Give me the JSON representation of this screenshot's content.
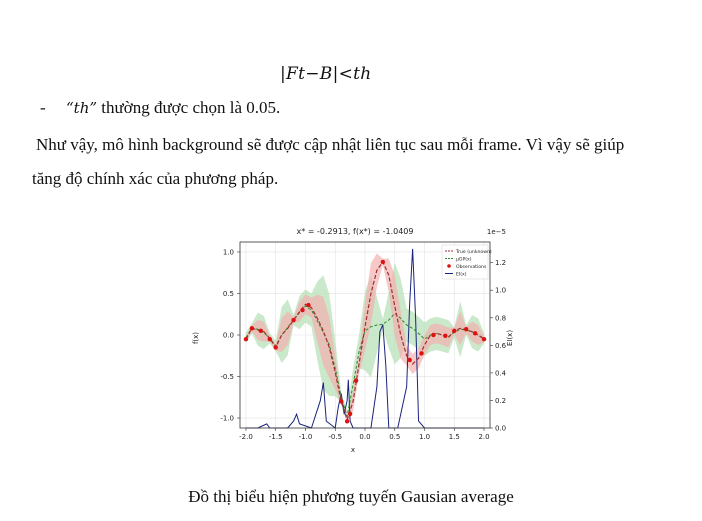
{
  "document": {
    "formula": "|Ft−B|<th",
    "bullet_dash": "-",
    "bullet_var": "“th”",
    "bullet_rest": " thường được chọn là 0.05.",
    "paragraph_line1": "Như vậy, mô hình background sẽ được cập nhật liên tục sau mỗi frame. Vì vậy sẽ giúp",
    "paragraph_line2": "tăng độ chính xác của phương pháp.",
    "caption": "Đồ thị biểu hiện phương tuyến Gausian average"
  },
  "chart_data": {
    "type": "line",
    "title": "x* = -0.2913, f(x*) = -1.0409",
    "xlabel": "x",
    "ylabel": "f(x)",
    "y2label": "EI(x)",
    "y2_scale_label": "1e−5",
    "xlim": [
      -2.1,
      2.1
    ],
    "ylim": [
      -1.12,
      1.12
    ],
    "y2lim": [
      0,
      1.35
    ],
    "xticks": [
      "-2.0",
      "-1.5",
      "-1.0",
      "-0.5",
      "0.0",
      "0.5",
      "1.0",
      "1.5",
      "2.0"
    ],
    "yticks": [
      "1.0",
      "0.5",
      "0.0",
      "-0.5",
      "-1.0"
    ],
    "y2ticks": [
      "1.2",
      "1.0",
      "0.8",
      "0.6",
      "0.4",
      "0.2",
      "0.0"
    ],
    "legend": [
      "True (unknown)",
      "μGP(x)",
      "Observations",
      "EI(x)"
    ],
    "legend_position": "top-right",
    "grid": true,
    "colors": {
      "true": "#a03030",
      "mu": "#2a8a2a",
      "obs": "#dd1111",
      "ei": "#1a237e",
      "band_red": "#f4b0b0",
      "band_green": "#b8e0b8"
    },
    "series": [
      {
        "name": "True (unknown)",
        "x": [
          -2.0,
          -1.9,
          -1.8,
          -1.7,
          -1.6,
          -1.5,
          -1.4,
          -1.3,
          -1.2,
          -1.1,
          -1.0,
          -0.9,
          -0.8,
          -0.7,
          -0.6,
          -0.5,
          -0.4,
          -0.3,
          -0.2,
          -0.1,
          0.0,
          0.1,
          0.2,
          0.3,
          0.4,
          0.5,
          0.6,
          0.7,
          0.8,
          0.9,
          1.0,
          1.1,
          1.2,
          1.3,
          1.4,
          1.5,
          1.6,
          1.7,
          1.8,
          1.9,
          2.0
        ],
        "y": [
          -0.05,
          0.08,
          0.06,
          0.04,
          -0.04,
          -0.15,
          0.0,
          0.08,
          0.18,
          0.28,
          0.37,
          0.33,
          0.2,
          0.05,
          -0.15,
          -0.45,
          -0.8,
          -1.02,
          -0.8,
          -0.35,
          0.1,
          0.5,
          0.78,
          0.88,
          0.72,
          0.35,
          0.0,
          -0.25,
          -0.35,
          -0.28,
          -0.12,
          0.0,
          0.02,
          0.0,
          -0.03,
          0.05,
          0.08,
          0.06,
          0.04,
          0.0,
          -0.05
        ]
      },
      {
        "name": "μGP(x)",
        "x": [
          -2.0,
          -1.9,
          -1.8,
          -1.7,
          -1.6,
          -1.5,
          -1.4,
          -1.3,
          -1.2,
          -1.1,
          -1.0,
          -0.9,
          -0.8,
          -0.7,
          -0.6,
          -0.5,
          -0.4,
          -0.3,
          -0.2,
          -0.1,
          0.0,
          0.1,
          0.2,
          0.3,
          0.4,
          0.5,
          0.6,
          0.7,
          0.8,
          0.9,
          1.0,
          1.1,
          1.2,
          1.3,
          1.4,
          1.5,
          1.6,
          1.7,
          1.8,
          1.9,
          2.0
        ],
        "y": [
          -0.03,
          0.08,
          0.07,
          0.03,
          -0.04,
          -0.13,
          0.0,
          0.09,
          0.18,
          0.27,
          0.35,
          0.3,
          0.17,
          0.03,
          -0.12,
          -0.4,
          -0.75,
          -0.98,
          -0.6,
          -0.2,
          0.05,
          0.1,
          0.12,
          0.13,
          0.18,
          0.26,
          0.2,
          0.12,
          0.08,
          0.02,
          -0.05,
          0.0,
          0.02,
          0.0,
          -0.02,
          0.03,
          0.07,
          0.06,
          0.04,
          0.0,
          -0.04
        ]
      },
      {
        "name": "Observations",
        "x": [
          -2.0,
          -1.9,
          -1.75,
          -1.6,
          -1.5,
          -1.2,
          -1.05,
          -0.95,
          -0.4,
          -0.3,
          -0.25,
          -0.15,
          0.3,
          0.75,
          0.95,
          1.15,
          1.35,
          1.5,
          1.7,
          1.85,
          2.0
        ],
        "y": [
          -0.05,
          0.08,
          0.05,
          -0.05,
          -0.15,
          0.18,
          0.3,
          0.36,
          -0.8,
          -1.04,
          -0.95,
          -0.55,
          0.88,
          -0.3,
          -0.22,
          0.0,
          -0.01,
          0.05,
          0.07,
          0.02,
          -0.05
        ]
      },
      {
        "name": "EI(x)",
        "x": [
          -2.0,
          -1.8,
          -1.7,
          -1.65,
          -1.6,
          -1.3,
          -1.2,
          -1.15,
          -1.1,
          -0.9,
          -0.75,
          -0.7,
          -0.65,
          -0.5,
          -0.45,
          -0.4,
          -0.35,
          -0.3,
          -0.28,
          -0.25,
          -0.2,
          -0.1,
          0.1,
          0.2,
          0.25,
          0.3,
          0.35,
          0.4,
          0.55,
          0.7,
          0.75,
          0.8,
          0.85,
          0.9,
          1.0,
          1.5,
          2.0
        ],
        "y": [
          0.0,
          0.0,
          0.02,
          0.03,
          0.0,
          0.0,
          0.05,
          0.1,
          0.03,
          0.0,
          0.2,
          0.33,
          0.05,
          0.0,
          0.15,
          0.25,
          0.1,
          0.2,
          0.35,
          0.05,
          0.0,
          0.0,
          0.0,
          0.3,
          0.7,
          0.75,
          0.45,
          0.0,
          0.0,
          0.3,
          0.9,
          1.3,
          0.8,
          0.05,
          0.0,
          0.0,
          0.0
        ]
      }
    ]
  }
}
